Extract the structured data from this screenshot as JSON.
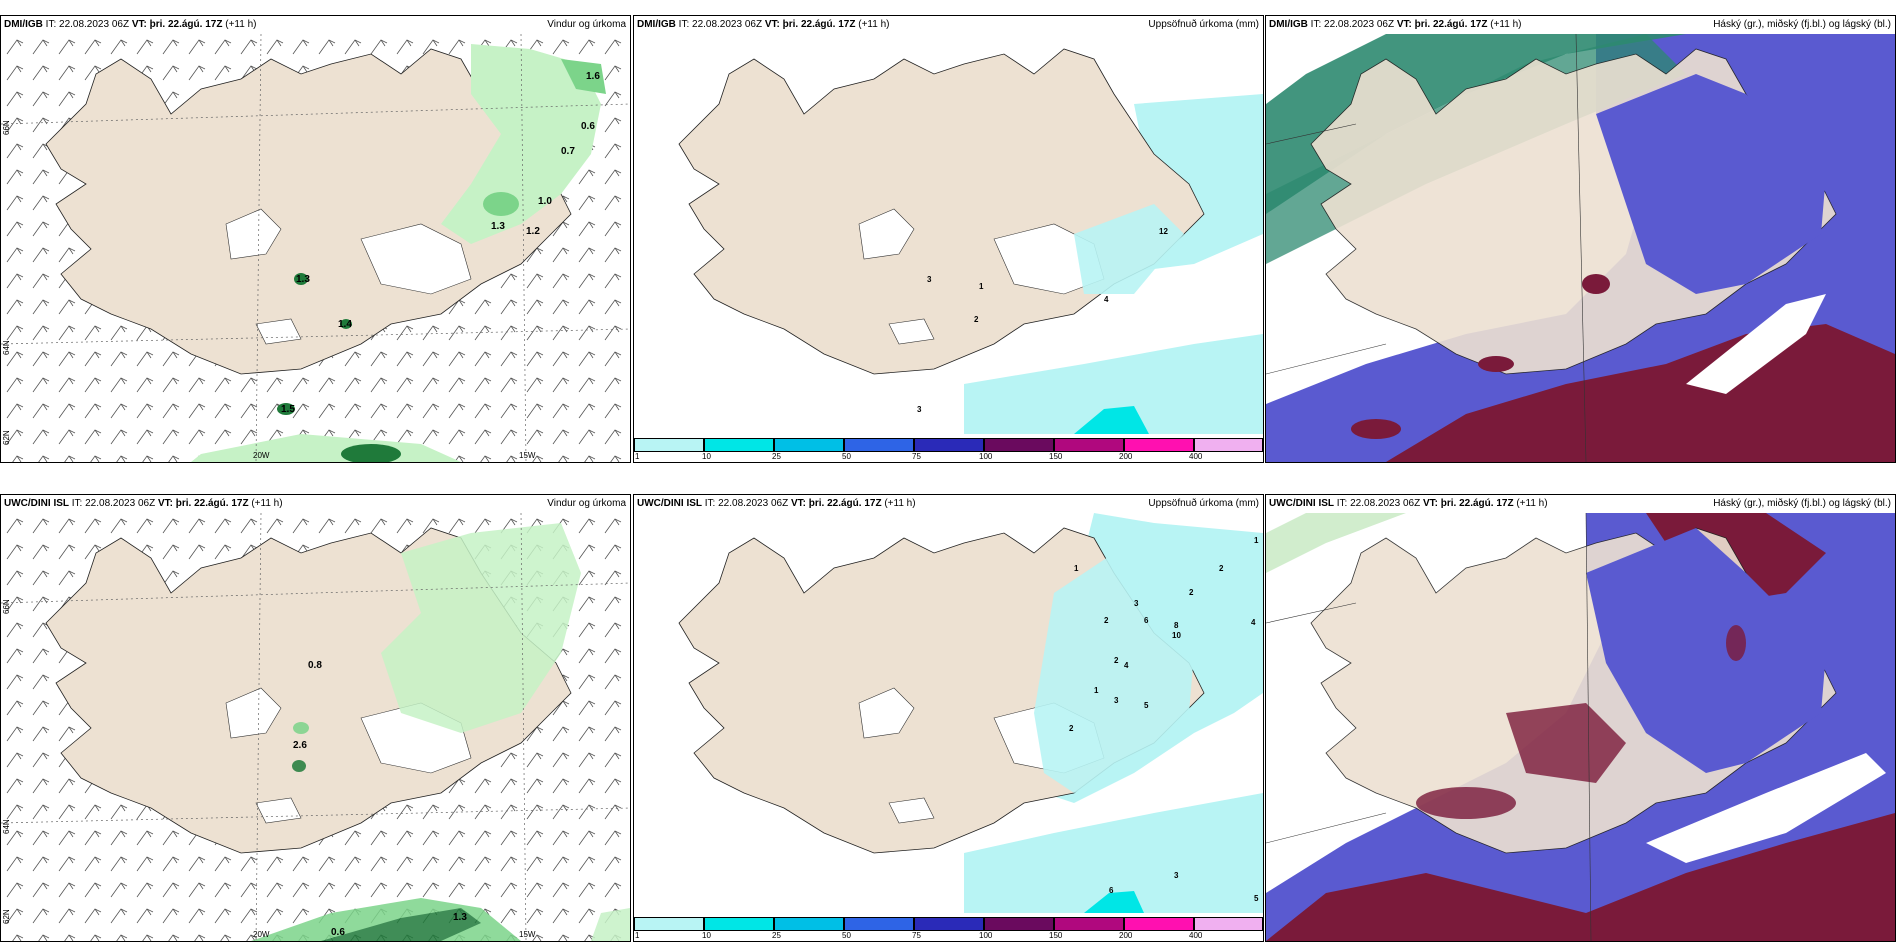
{
  "panels": [
    {
      "model": "DMI/IGB",
      "it": "IT: 22.08.2023 06Z",
      "vt": "VT: þri. 22.ágú. 17Z",
      "lead": "(+11 h)",
      "title": "Vindur og úrkoma",
      "values": [
        "1.6",
        "0.6",
        "0.7",
        "1.0",
        "1.2",
        "1.3",
        "1.3",
        "1.4",
        "1.5"
      ],
      "axes": [
        "66N",
        "64N",
        "62N",
        "20W",
        "15W"
      ]
    },
    {
      "model": "DMI/IGB",
      "it": "IT: 22.08.2023 06Z",
      "vt": "VT: þri. 22.ágú. 17Z",
      "lead": "(+11 h)",
      "title": "Uppsöfnuð úrkoma (mm)",
      "values": [
        "12",
        "3",
        "1",
        "2",
        "4",
        "3"
      ],
      "axes": []
    },
    {
      "model": "DMI/IGB",
      "it": "IT: 22.08.2023 06Z",
      "vt": "VT: þri. 22.ágú. 17Z",
      "lead": "(+11 h)",
      "title": "Háský (gr.), miðský (fj.bl.) og lágský (bl.)",
      "values": [],
      "axes": []
    },
    {
      "model": "UWC/DINI ISL",
      "it": "IT: 22.08.2023 06Z",
      "vt": "VT: þri. 22.ágú. 17Z",
      "lead": "(+11 h)",
      "title": "Vindur og úrkoma",
      "values": [
        "0.8",
        "2.6",
        "1.3",
        "0.6"
      ],
      "axes": [
        "66N",
        "64N",
        "62N",
        "20W",
        "15W"
      ]
    },
    {
      "model": "UWC/DINI ISL",
      "it": "IT: 22.08.2023 06Z",
      "vt": "VT: þri. 22.ágú. 17Z",
      "lead": "(+11 h)",
      "title": "Uppsöfnuð úrkoma (mm)",
      "values": [
        "1",
        "1",
        "2",
        "2",
        "3",
        "6",
        "8",
        "10",
        "4",
        "2",
        "2",
        "4",
        "1",
        "3",
        "5",
        "6",
        "3",
        "5",
        "2"
      ],
      "axes": []
    },
    {
      "model": "UWC/DINI ISL",
      "it": "IT: 22.08.2023 06Z",
      "vt": "VT: þri. 22.ágú. 17Z",
      "lead": "(+11 h)",
      "title": "Háský (gr.), miðský (fj.bl.) og lágský (bl.)",
      "values": [],
      "axes": []
    }
  ],
  "colorbar": {
    "ticks": [
      "1",
      "10",
      "25",
      "50",
      "75",
      "100",
      "150",
      "200",
      "400"
    ],
    "colors": [
      "#b8f4f4",
      "#00e6e6",
      "#00bfe6",
      "#2e64e6",
      "#2a2ab8",
      "#6a0a5e",
      "#b0087e",
      "#ff10b0",
      "#f0b0f0"
    ]
  },
  "colors": {
    "land": "#ede1d2",
    "precip_light": "#c6f2c6",
    "precip_mid": "#7cd48a",
    "precip_dark": "#1f7a3a",
    "cyan_light": "#b8f4f4",
    "cloud_high": "#2d8a70",
    "cloud_mid": "#5a5ad0",
    "cloud_low": "#7a1a3a"
  }
}
